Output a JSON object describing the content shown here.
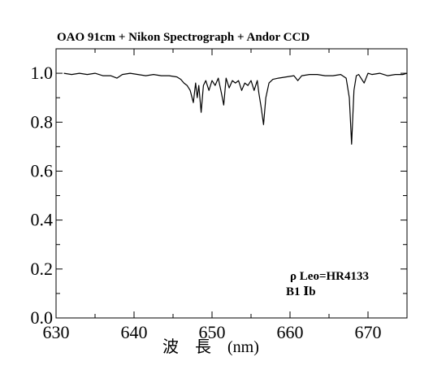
{
  "chart_data": {
    "type": "line",
    "title": "OAO 91cm + Nikon Spectrograph + Andor CCD",
    "xlabel": "波　長　(nm)",
    "ylabel": "",
    "xlim": [
      630,
      675
    ],
    "ylim": [
      0.0,
      1.1
    ],
    "xticks": [
      630,
      640,
      650,
      660,
      670
    ],
    "xtick_labels": [
      "630",
      "640",
      "650",
      "660",
      "670"
    ],
    "yticks": [
      0.0,
      0.2,
      0.4,
      0.6,
      0.8,
      1.0
    ],
    "ytick_labels": [
      "0.0",
      "0.2",
      "0.4",
      "0.6",
      "0.8",
      "1.0"
    ],
    "grid": false,
    "annotations": [
      "ρ Leo=HR4133",
      "B1 Ⅰb"
    ],
    "series": [
      {
        "x": [
          631.0,
          632.0,
          633.0,
          634.0,
          635.0,
          636.0,
          637.0,
          637.8,
          638.5,
          639.5,
          640.5,
          641.5,
          642.5,
          643.5,
          644.5,
          645.5,
          646.0,
          646.4,
          646.8,
          647.2,
          647.6,
          647.9,
          648.1,
          648.3,
          648.6,
          648.9,
          649.2,
          649.6,
          650.0,
          650.4,
          650.8,
          651.2,
          651.5,
          651.8,
          652.2,
          652.6,
          653.0,
          653.4,
          653.8,
          654.2,
          654.6,
          655.0,
          655.4,
          655.8,
          656.0,
          656.3,
          656.6,
          656.9,
          657.3,
          657.8,
          658.5,
          659.5,
          660.5,
          661.0,
          661.5,
          662.5,
          663.5,
          664.5,
          665.5,
          666.5,
          667.2,
          667.6,
          667.9,
          668.2,
          668.5,
          668.8,
          669.5,
          670.0,
          670.5,
          671.5,
          672.5,
          673.5,
          674.5,
          675.0
        ],
        "y": [
          1.0,
          0.995,
          1.0,
          0.995,
          1.0,
          0.99,
          0.99,
          0.98,
          0.995,
          1.0,
          0.995,
          0.99,
          0.995,
          0.99,
          0.99,
          0.985,
          0.975,
          0.96,
          0.95,
          0.93,
          0.88,
          0.96,
          0.9,
          0.95,
          0.84,
          0.95,
          0.97,
          0.93,
          0.97,
          0.95,
          0.98,
          0.92,
          0.87,
          0.98,
          0.94,
          0.97,
          0.96,
          0.97,
          0.93,
          0.96,
          0.95,
          0.97,
          0.93,
          0.97,
          0.92,
          0.86,
          0.79,
          0.9,
          0.96,
          0.975,
          0.98,
          0.985,
          0.99,
          0.97,
          0.99,
          0.995,
          0.995,
          0.99,
          0.99,
          0.995,
          0.98,
          0.9,
          0.71,
          0.93,
          0.99,
          0.995,
          0.96,
          1.0,
          0.995,
          1.0,
          0.99,
          0.995,
          0.995,
          1.0
        ]
      }
    ]
  }
}
